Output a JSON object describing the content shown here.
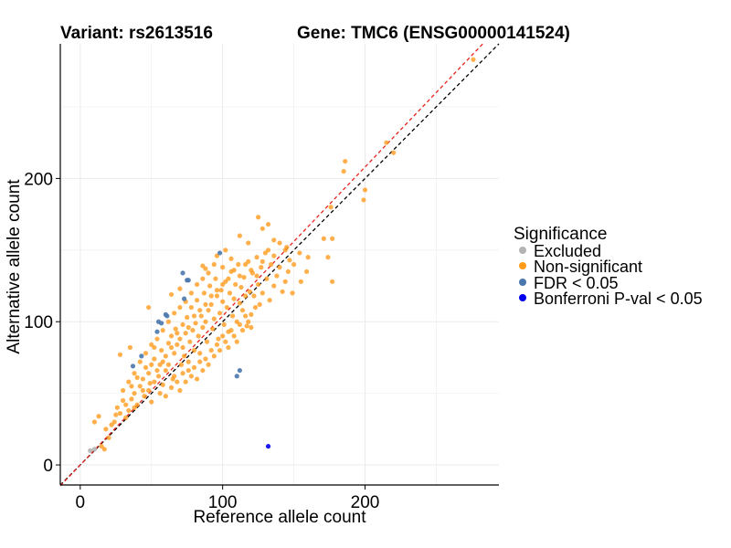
{
  "chart_data": {
    "type": "scatter",
    "title_left": "Variant: rs2613516",
    "title_right": "Gene: TMC6 (ENSG00000141524)",
    "xlabel": "Reference allele count",
    "ylabel": "Alternative allele count",
    "xlim": [
      -14,
      294
    ],
    "ylim": [
      -14,
      294
    ],
    "x_ticks": [
      0,
      100,
      200
    ],
    "y_ticks": [
      0,
      100,
      200
    ],
    "grid": true,
    "legend": {
      "title": "Significance",
      "position": "right",
      "entries": [
        {
          "label": "Excluded",
          "color": "#b3b3b3"
        },
        {
          "label": "Non-significant",
          "color": "#ff9a1a"
        },
        {
          "label": "FDR < 0.05",
          "color": "#4a78ad"
        },
        {
          "label": "Bonferroni P-val < 0.05",
          "color": "#0000ee"
        }
      ]
    },
    "reference_lines": [
      {
        "name": "identity-line",
        "slope": 1.0,
        "intercept": 0,
        "color": "#000000",
        "dash": true
      },
      {
        "name": "fit-line",
        "slope": 1.04,
        "intercept": 0,
        "color": "#e8231a",
        "dash": true
      }
    ],
    "series": [
      {
        "name": "Excluded",
        "color": "#b3b3b3",
        "points": [
          [
            7,
            10
          ],
          [
            10,
            11
          ]
        ]
      },
      {
        "name": "FDR < 0.05",
        "color": "#4a78ad",
        "points": [
          [
            98,
            148
          ],
          [
            72,
            134
          ],
          [
            75,
            129
          ],
          [
            76,
            129
          ],
          [
            73,
            116
          ],
          [
            60,
            105
          ],
          [
            61,
            104
          ],
          [
            55,
            100
          ],
          [
            57,
            99
          ],
          [
            54,
            93
          ],
          [
            43,
            76
          ],
          [
            37,
            69
          ],
          [
            112,
            66
          ],
          [
            110,
            62
          ]
        ]
      },
      {
        "name": "Bonferroni P-val < 0.05",
        "color": "#0000ee",
        "points": [
          [
            132,
            13
          ]
        ]
      },
      {
        "name": "Non-significant",
        "color": "#ff9a1a",
        "points": [
          [
            276,
            283
          ],
          [
            215,
            225
          ],
          [
            220,
            218
          ],
          [
            186,
            212
          ],
          [
            185,
            205
          ],
          [
            200,
            192
          ],
          [
            199,
            185
          ],
          [
            176,
            180
          ],
          [
            177,
            158
          ],
          [
            171,
            158
          ],
          [
            177,
            128
          ],
          [
            174,
            145
          ],
          [
            154,
            148
          ],
          [
            159,
            135
          ],
          [
            149,
            120
          ],
          [
            132,
            168
          ],
          [
            125,
            173
          ],
          [
            128,
            165
          ],
          [
            147,
            143
          ],
          [
            145,
            152
          ],
          [
            136,
            157
          ],
          [
            96,
            146
          ],
          [
            102,
            150
          ],
          [
            118,
            155
          ],
          [
            112,
            160
          ],
          [
            88,
            137
          ],
          [
            86,
            139
          ],
          [
            70,
            123
          ],
          [
            64,
            119
          ],
          [
            48,
            110
          ],
          [
            35,
            82
          ],
          [
            28,
            77
          ],
          [
            13,
            34
          ],
          [
            10,
            30
          ],
          [
            18,
            25
          ],
          [
            22,
            28
          ],
          [
            15,
            13
          ],
          [
            17,
            11
          ],
          [
            20,
            19
          ],
          [
            25,
            35
          ],
          [
            30,
            45
          ],
          [
            32,
            33
          ],
          [
            40,
            61
          ],
          [
            42,
            55
          ],
          [
            45,
            48
          ],
          [
            49,
            57
          ],
          [
            50,
            70
          ],
          [
            52,
            74
          ],
          [
            55,
            62
          ],
          [
            57,
            80
          ],
          [
            58,
            72
          ],
          [
            60,
            66
          ],
          [
            62,
            85
          ],
          [
            64,
            90
          ],
          [
            65,
            60
          ],
          [
            66,
            78
          ],
          [
            67,
            95
          ],
          [
            68,
            84
          ],
          [
            70,
            88
          ],
          [
            71,
            70
          ],
          [
            72,
            98
          ],
          [
            73,
            76
          ],
          [
            74,
            92
          ],
          [
            75,
            103
          ],
          [
            76,
            66
          ],
          [
            77,
            86
          ],
          [
            78,
            110
          ],
          [
            79,
            94
          ],
          [
            80,
            80
          ],
          [
            81,
            99
          ],
          [
            82,
            115
          ],
          [
            83,
            90
          ],
          [
            84,
            72
          ],
          [
            85,
            104
          ],
          [
            86,
            96
          ],
          [
            87,
            120
          ],
          [
            88,
            100
          ],
          [
            89,
            86
          ],
          [
            90,
            108
          ],
          [
            91,
            125
          ],
          [
            92,
            112
          ],
          [
            93,
            95
          ],
          [
            94,
            102
          ],
          [
            95,
            130
          ],
          [
            96,
            118
          ],
          [
            97,
            88
          ],
          [
            98,
            106
          ],
          [
            99,
            122
          ],
          [
            100,
            114
          ],
          [
            101,
            98
          ],
          [
            102,
            128
          ],
          [
            103,
            110
          ],
          [
            104,
            93
          ],
          [
            105,
            120
          ],
          [
            106,
            135
          ],
          [
            107,
            104
          ],
          [
            108,
            116
          ],
          [
            109,
            126
          ],
          [
            110,
            100
          ],
          [
            111,
            140
          ],
          [
            112,
            113
          ],
          [
            113,
            124
          ],
          [
            114,
            108
          ],
          [
            115,
            131
          ],
          [
            116,
            118
          ],
          [
            117,
            97
          ],
          [
            118,
            142
          ],
          [
            119,
            121
          ],
          [
            120,
            105
          ],
          [
            121,
            134
          ],
          [
            122,
            118
          ],
          [
            123,
            110
          ],
          [
            124,
            145
          ],
          [
            125,
            126
          ],
          [
            126,
            112
          ],
          [
            127,
            138
          ],
          [
            128,
            120
          ],
          [
            130,
            148
          ],
          [
            131,
            130
          ],
          [
            133,
            115
          ],
          [
            134,
            140
          ],
          [
            136,
            125
          ],
          [
            138,
            132
          ],
          [
            140,
            138
          ],
          [
            142,
            121
          ],
          [
            144,
            128
          ],
          [
            146,
            135
          ],
          [
            36,
            55
          ],
          [
            38,
            50
          ],
          [
            40,
            42
          ],
          [
            44,
            60
          ],
          [
            46,
            68
          ],
          [
            48,
            52
          ],
          [
            50,
            44
          ],
          [
            52,
            58
          ],
          [
            54,
            66
          ],
          [
            56,
            50
          ],
          [
            58,
            56
          ],
          [
            60,
            48
          ],
          [
            62,
            70
          ],
          [
            64,
            54
          ],
          [
            66,
            62
          ],
          [
            68,
            58
          ],
          [
            70,
            52
          ],
          [
            72,
            64
          ],
          [
            74,
            58
          ],
          [
            76,
            72
          ],
          [
            78,
            62
          ],
          [
            80,
            68
          ],
          [
            82,
            60
          ],
          [
            84,
            78
          ],
          [
            86,
            66
          ],
          [
            88,
            74
          ],
          [
            90,
            70
          ],
          [
            92,
            80
          ],
          [
            94,
            76
          ],
          [
            96,
            84
          ],
          [
            98,
            80
          ],
          [
            100,
            90
          ],
          [
            102,
            86
          ],
          [
            104,
            82
          ],
          [
            106,
            94
          ],
          [
            108,
            90
          ],
          [
            110,
            86
          ],
          [
            112,
            98
          ],
          [
            114,
            94
          ],
          [
            116,
            104
          ],
          [
            118,
            100
          ],
          [
            120,
            96
          ],
          [
            30,
            52
          ],
          [
            34,
            58
          ],
          [
            38,
            64
          ],
          [
            42,
            72
          ],
          [
            46,
            78
          ],
          [
            50,
            84
          ],
          [
            54,
            88
          ],
          [
            58,
            94
          ],
          [
            62,
            100
          ],
          [
            66,
            106
          ],
          [
            70,
            110
          ],
          [
            74,
            114
          ],
          [
            78,
            120
          ],
          [
            82,
            126
          ],
          [
            86,
            130
          ],
          [
            90,
            134
          ],
          [
            94,
            140
          ],
          [
            100,
            138
          ],
          [
            106,
            144
          ],
          [
            24,
            30
          ],
          [
            26,
            40
          ],
          [
            28,
            36
          ],
          [
            32,
            42
          ],
          [
            34,
            38
          ],
          [
            36,
            46
          ],
          [
            38,
            40
          ],
          [
            44,
            52
          ],
          [
            48,
            64
          ],
          [
            52,
            82
          ],
          [
            56,
            70
          ],
          [
            60,
            76
          ],
          [
            64,
            82
          ],
          [
            68,
            92
          ],
          [
            72,
            82
          ],
          [
            76,
            96
          ],
          [
            80,
            104
          ],
          [
            84,
            108
          ],
          [
            88,
            112
          ],
          [
            92,
            118
          ],
          [
            96,
            122
          ],
          [
            100,
            126
          ],
          [
            104,
            130
          ],
          [
            108,
            136
          ],
          [
            112,
            132
          ],
          [
            116,
            140
          ],
          [
            120,
            136
          ],
          [
            124,
            132
          ],
          [
            128,
            142
          ],
          [
            132,
            150
          ],
          [
            136,
            146
          ],
          [
            140,
            155
          ],
          [
            144,
            150
          ],
          [
            150,
            140
          ],
          [
            155,
            128
          ],
          [
            160,
            145
          ]
        ]
      }
    ]
  }
}
